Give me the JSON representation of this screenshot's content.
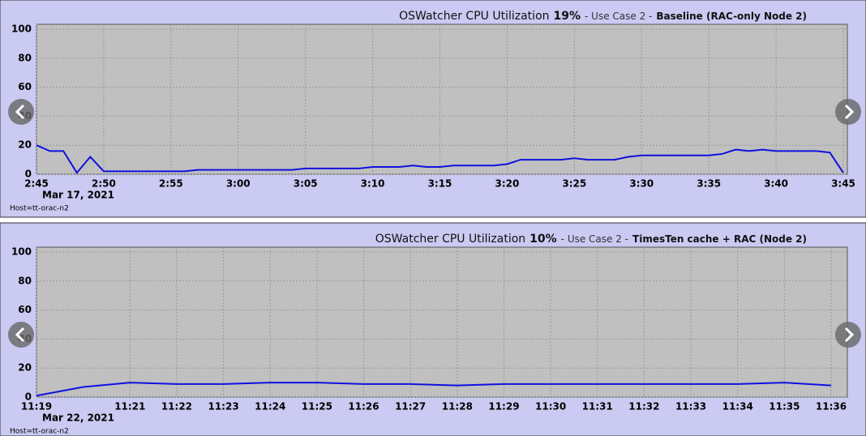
{
  "chart_data": [
    {
      "type": "line",
      "title": [
        "OSWatcher  CPU Utilization",
        "19%",
        "- Use Case 2 -",
        "Baseline (RAC-only Node 2)"
      ],
      "date": "Mar 17, 2021",
      "host": "Host=tt-orac-n2",
      "x": [
        "2:45",
        "2:46",
        "2:47",
        "2:48",
        "2:49",
        "2:50",
        "2:51",
        "2:52",
        "2:53",
        "2:54",
        "2:55",
        "2:56",
        "2:57",
        "2:58",
        "2:59",
        "3:00",
        "3:01",
        "3:02",
        "3:03",
        "3:04",
        "3:05",
        "3:06",
        "3:07",
        "3:08",
        "3:09",
        "3:10",
        "3:11",
        "3:12",
        "3:13",
        "3:14",
        "3:15",
        "3:16",
        "3:17",
        "3:18",
        "3:19",
        "3:20",
        "3:21",
        "3:22",
        "3:23",
        "3:24",
        "3:25",
        "3:26",
        "3:27",
        "3:28",
        "3:29",
        "3:30",
        "3:31",
        "3:32",
        "3:33",
        "3:34",
        "3:35",
        "3:36",
        "3:37",
        "3:38",
        "3:39",
        "3:40",
        "3:41",
        "3:42",
        "3:43",
        "3:44",
        "3:45"
      ],
      "series": [
        {
          "name": "CPU",
          "color": "#1010e0",
          "values": [
            20,
            16,
            16,
            1,
            12,
            2,
            2,
            2,
            2,
            2,
            2,
            2,
            3,
            3,
            3,
            3,
            3,
            3,
            3,
            3,
            4,
            4,
            4,
            4,
            4,
            5,
            5,
            5,
            6,
            5,
            5,
            6,
            6,
            6,
            6,
            7,
            10,
            10,
            10,
            10,
            11,
            10,
            10,
            10,
            12,
            13,
            13,
            13,
            13,
            13,
            13,
            14,
            17,
            16,
            17,
            16,
            16,
            16,
            16,
            15,
            1
          ]
        }
      ],
      "xlim": [
        "2:45",
        "3:45"
      ],
      "xticks": [
        "2:45",
        "2:50",
        "2:55",
        "3:00",
        "3:05",
        "3:10",
        "3:15",
        "3:20",
        "3:25",
        "3:30",
        "3:35",
        "3:40",
        "3:45"
      ],
      "ylim": [
        0,
        100
      ],
      "yticks": [
        0,
        20,
        40,
        60,
        80,
        100
      ],
      "grid": true
    },
    {
      "type": "line",
      "title": [
        "OSWatcher  CPU Utilization",
        "10%",
        "- Use Case 2 -",
        "TimesTen cache + RAC (Node 2)"
      ],
      "date": "Mar 22, 2021",
      "host": "Host=tt-orac-n2",
      "x": [
        "11:19",
        "11:20",
        "11:21",
        "11:22",
        "11:23",
        "11:24",
        "11:25",
        "11:26",
        "11:27",
        "11:28",
        "11:29",
        "11:30",
        "11:31",
        "11:32",
        "11:33",
        "11:34",
        "11:35",
        "11:36"
      ],
      "series": [
        {
          "name": "CPU",
          "color": "#1010e0",
          "values": [
            1,
            7,
            10,
            9,
            9,
            10,
            10,
            9,
            9,
            8,
            9,
            9,
            9,
            9,
            9,
            9,
            10,
            8
          ]
        }
      ],
      "xlim": [
        "11:19",
        "11:36"
      ],
      "xticks": [
        "11:19",
        "11:21",
        "11:22",
        "11:23",
        "11:24",
        "11:25",
        "11:26",
        "11:27",
        "11:28",
        "11:29",
        "11:30",
        "11:31",
        "11:32",
        "11:33",
        "11:34",
        "11:35",
        "11:36"
      ],
      "ylim": [
        0,
        100
      ],
      "yticks": [
        0,
        20,
        40,
        60,
        80,
        100
      ],
      "grid": true
    }
  ]
}
